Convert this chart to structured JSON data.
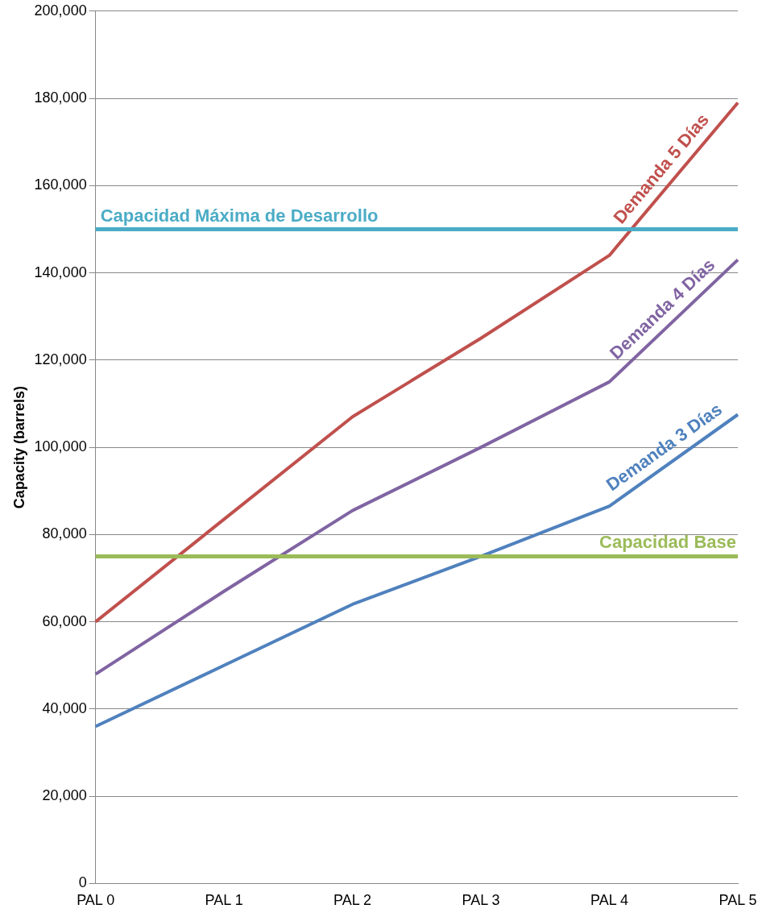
{
  "chart_data": {
    "type": "line",
    "ylabel": "Capacity (barrels)",
    "categories": [
      "PAL 0",
      "PAL 1",
      "PAL 2",
      "PAL 3",
      "PAL 4",
      "PAL 5"
    ],
    "series": [
      {
        "name": "Demanda 5 Días",
        "color": "#c0504d",
        "values": [
          60000,
          83500,
          107000,
          125000,
          144000,
          179000
        ]
      },
      {
        "name": "Demanda 4 Días",
        "color": "#8064a2",
        "values": [
          48000,
          67000,
          85500,
          100000,
          115000,
          143000
        ]
      },
      {
        "name": "Demanda 3 Días",
        "color": "#4f81bd",
        "values": [
          36000,
          50000,
          64000,
          75000,
          86500,
          107500
        ]
      }
    ],
    "ref_lines": [
      {
        "axis": "y",
        "value": 150000,
        "label": "Capacidad Máxima de Desarrollo",
        "color": "#4bacc6"
      },
      {
        "axis": "y",
        "value": 75000,
        "label": "Capacidad Base",
        "color": "#9bbb59"
      }
    ],
    "ylim": [
      0,
      200000
    ],
    "yticks": [
      0,
      {
        "value": 20000,
        "label": "20,000"
      },
      {
        "value": 40000,
        "label": "40,000"
      },
      {
        "value": 60000,
        "label": "60,000"
      },
      {
        "value": 80000,
        "label": "80,000"
      },
      {
        "value": 100000,
        "label": "100,000"
      },
      {
        "value": 120000,
        "label": "120,000"
      },
      {
        "value": 140000,
        "label": "140,000"
      },
      {
        "value": 160000,
        "label": "160,000"
      },
      {
        "value": 180000,
        "label": "180,000"
      },
      {
        "value": 200000,
        "label": "200,000"
      }
    ],
    "grid": "y",
    "legend": false,
    "marker": "none",
    "line_style": "solid"
  }
}
